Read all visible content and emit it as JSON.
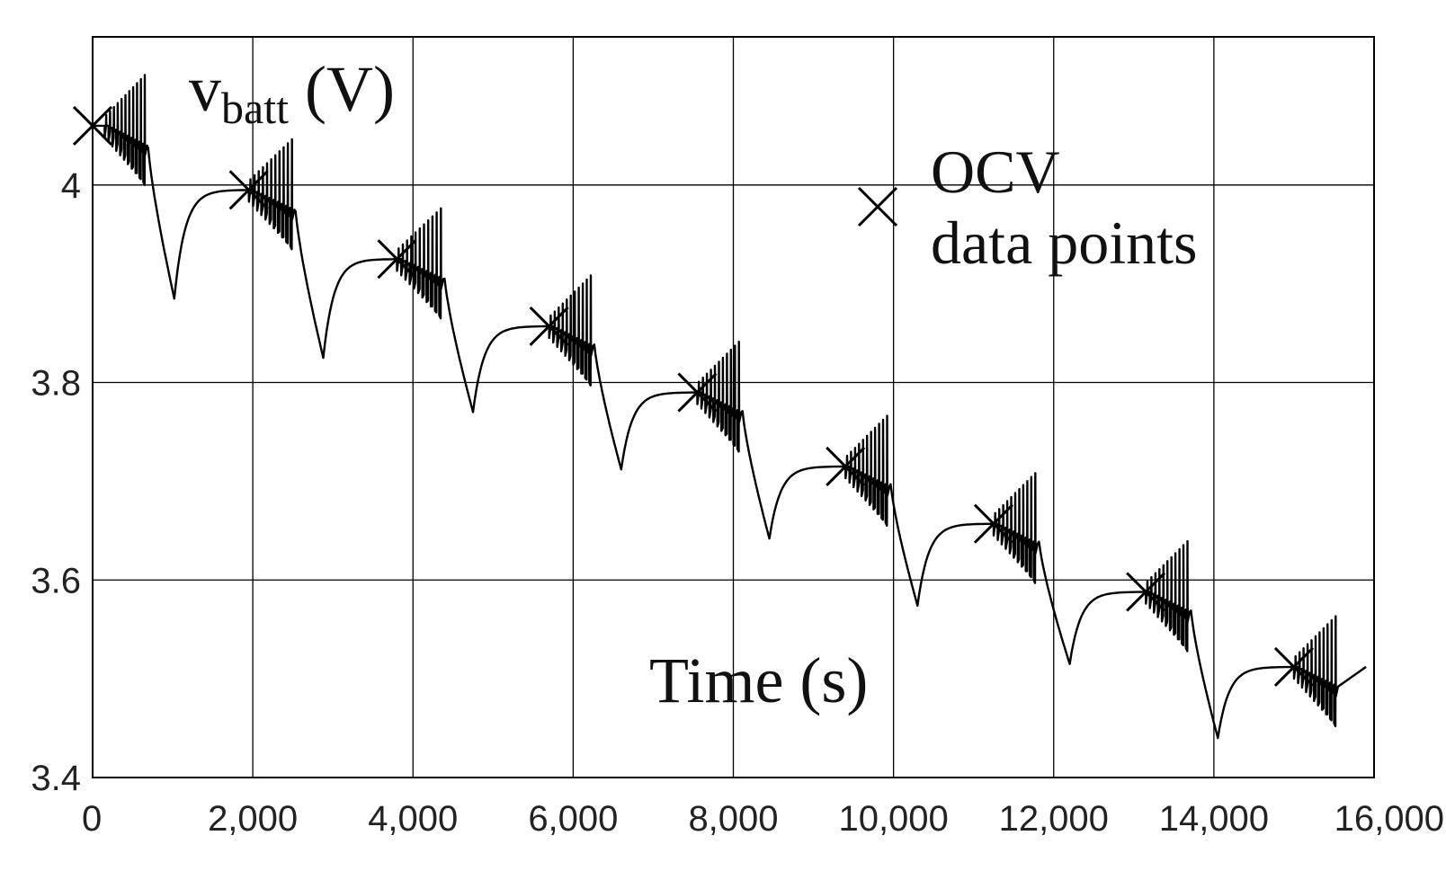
{
  "chart_data": {
    "type": "line",
    "title": "",
    "ylabel_main": "v",
    "ylabel_sub": "batt",
    "ylabel_unit": " (V)",
    "xlabel": "Time (s)",
    "xlim": [
      0,
      16000
    ],
    "ylim": [
      3.4,
      4.15
    ],
    "x_ticks": [
      0,
      2000,
      4000,
      6000,
      8000,
      10000,
      12000,
      14000,
      16000
    ],
    "x_tick_labels": [
      "0",
      "2,000",
      "4,000",
      "6,000",
      "8,000",
      "10,000",
      "12,000",
      "14,000",
      "16,000"
    ],
    "y_ticks": [
      3.4,
      3.6,
      3.8,
      4.0
    ],
    "y_tick_labels": [
      "3.4",
      "3.6",
      "3.8",
      "4"
    ],
    "grid": true,
    "legend": {
      "position": "top-right",
      "label_line1": "OCV",
      "label_line2": "data points",
      "marker": "x"
    },
    "series": [
      {
        "name": "v_batt",
        "cycles": [
          {
            "rest_start": 0,
            "v_start": 4.06,
            "v_rest": 4.06,
            "pulse_start": 150,
            "pulse_end": 680,
            "v_min": 3.885,
            "discharge_end": 1020
          },
          {
            "rest_start": 1020,
            "v_start": 3.885,
            "v_rest": 3.995,
            "pulse_start": 1950,
            "pulse_end": 2520,
            "v_min": 3.825,
            "discharge_end": 2880
          },
          {
            "rest_start": 2880,
            "v_start": 3.825,
            "v_rest": 3.925,
            "pulse_start": 3800,
            "pulse_end": 4380,
            "v_min": 3.77,
            "discharge_end": 4750
          },
          {
            "rest_start": 4750,
            "v_start": 3.77,
            "v_rest": 3.857,
            "pulse_start": 5700,
            "pulse_end": 6250,
            "v_min": 3.712,
            "discharge_end": 6600
          },
          {
            "rest_start": 6600,
            "v_start": 3.712,
            "v_rest": 3.79,
            "pulse_start": 7550,
            "pulse_end": 8100,
            "v_min": 3.642,
            "discharge_end": 8450
          },
          {
            "rest_start": 8450,
            "v_start": 3.642,
            "v_rest": 3.715,
            "pulse_start": 9400,
            "pulse_end": 9950,
            "v_min": 3.574,
            "discharge_end": 10300
          },
          {
            "rest_start": 10300,
            "v_start": 3.574,
            "v_rest": 3.657,
            "pulse_start": 11250,
            "pulse_end": 11800,
            "v_min": 3.515,
            "discharge_end": 12200
          },
          {
            "rest_start": 12200,
            "v_start": 3.515,
            "v_rest": 3.588,
            "pulse_start": 13150,
            "pulse_end": 13700,
            "v_min": 3.44,
            "discharge_end": 14050
          },
          {
            "rest_start": 14050,
            "v_start": 3.44,
            "v_rest": 3.512,
            "pulse_start": 15000,
            "pulse_end": 15550,
            "v_min": null,
            "discharge_end": 15900
          }
        ]
      },
      {
        "name": "OCV data points",
        "marker": "x",
        "x": [
          0,
          1950,
          3800,
          5700,
          7550,
          9400,
          11250,
          13150,
          15000
        ],
        "y": [
          4.06,
          3.995,
          3.925,
          3.857,
          3.79,
          3.715,
          3.657,
          3.588,
          3.512
        ]
      }
    ]
  }
}
